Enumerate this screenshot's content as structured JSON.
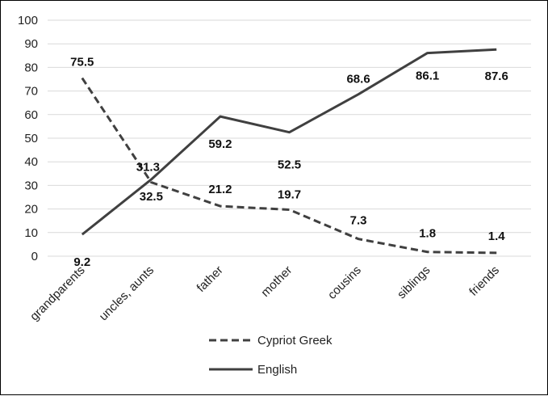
{
  "chart_data": {
    "type": "line",
    "categories": [
      "grandparents",
      "uncles, aunts",
      "father",
      "mother",
      "cousins",
      "siblings",
      "friends"
    ],
    "ylim": [
      0,
      100
    ],
    "yticks": [
      0,
      10,
      20,
      30,
      40,
      50,
      60,
      70,
      80,
      90,
      100
    ],
    "grid": "horizontal",
    "legend_position": "bottom",
    "series": [
      {
        "name": "Cypriot Greek",
        "style": "dashed",
        "color": "#404040",
        "values": [
          75.5,
          31.3,
          21.2,
          19.7,
          7.3,
          1.8,
          1.4
        ],
        "labels": [
          "75.5",
          "31.3",
          "21.2",
          "19.7",
          "7.3",
          "1.8",
          "1.4"
        ]
      },
      {
        "name": "English",
        "style": "solid",
        "color": "#404040",
        "values": [
          9.2,
          32.5,
          59.2,
          52.5,
          68.6,
          86.1,
          87.6
        ],
        "labels": [
          "9.2",
          "32.5",
          "59.2",
          "52.5",
          "68.6",
          "86.1",
          "87.6"
        ]
      }
    ]
  }
}
